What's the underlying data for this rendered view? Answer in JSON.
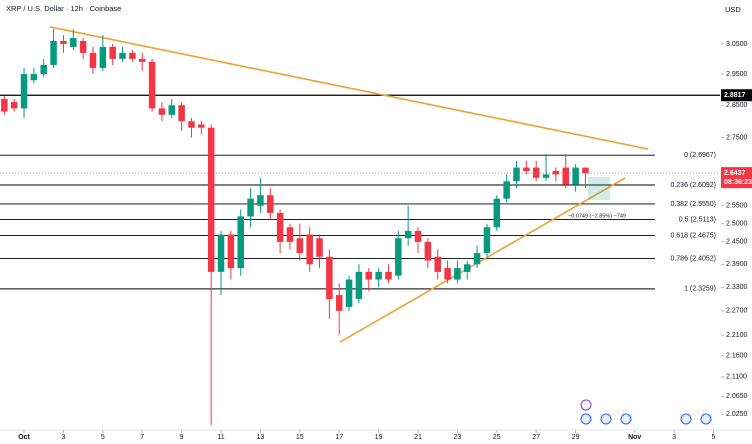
{
  "chart_data": {
    "type": "candlestick",
    "title": "XRP / U.S. Dollar · 12h · Coinbase",
    "unit": "USD",
    "log_scale": true,
    "up_color": "#089981",
    "down_color": "#f23645",
    "x": [
      0,
      0.5,
      1,
      1.5,
      2,
      2.5,
      3,
      3.5,
      4,
      4.5,
      5,
      5.5,
      6,
      6.5,
      7,
      7.5,
      8,
      8.5,
      9,
      9.5,
      10,
      10.5,
      11,
      11.5,
      12,
      12.5,
      13,
      13.5,
      14,
      14.5,
      15,
      15.5,
      16,
      16.5,
      17,
      17.5,
      18,
      18.5,
      19,
      19.5,
      20,
      20.5,
      21,
      21.5,
      22,
      22.5,
      23,
      23.5,
      24,
      24.5,
      25,
      25.5,
      26,
      26.5,
      27,
      27.5,
      28,
      28.5,
      29,
      29.5
    ],
    "open": [
      2.87,
      2.86,
      2.84,
      2.93,
      2.95,
      2.98,
      3.06,
      3.04,
      3.06,
      3.02,
      2.97,
      3.04,
      3.0,
      3.02,
      3.0,
      2.99,
      2.84,
      2.82,
      2.85,
      2.8,
      2.79,
      2.78,
      2.37,
      2.47,
      2.38,
      2.52,
      2.55,
      2.58,
      2.53,
      2.49,
      2.46,
      2.47,
      2.46,
      2.41,
      2.31,
      2.28,
      2.3,
      2.37,
      2.35,
      2.37,
      2.36,
      2.46,
      2.48,
      2.45,
      2.41,
      2.38,
      2.35,
      2.37,
      2.39,
      2.42,
      2.49,
      2.57,
      2.62,
      2.66,
      2.66,
      2.63,
      2.65,
      2.66,
      2.61,
      2.66
    ],
    "high": [
      2.88,
      2.87,
      2.97,
      2.97,
      3.0,
      3.1,
      3.08,
      3.1,
      3.07,
      3.04,
      3.08,
      3.05,
      3.04,
      3.03,
      3.02,
      3.0,
      2.86,
      2.87,
      2.86,
      2.81,
      2.8,
      2.79,
      2.48,
      2.48,
      2.54,
      2.6,
      2.63,
      2.6,
      2.54,
      2.5,
      2.5,
      2.49,
      2.47,
      2.43,
      2.34,
      2.36,
      2.39,
      2.38,
      2.38,
      2.39,
      2.48,
      2.55,
      2.49,
      2.46,
      2.43,
      2.4,
      2.4,
      2.4,
      2.44,
      2.5,
      2.58,
      2.64,
      2.68,
      2.68,
      2.68,
      2.7,
      2.66,
      2.7,
      2.67,
      2.66
    ],
    "low": [
      2.82,
      2.83,
      2.81,
      2.92,
      2.94,
      2.97,
      3.02,
      3.03,
      3.0,
      2.95,
      2.96,
      2.98,
      2.99,
      2.99,
      2.96,
      2.83,
      2.8,
      2.81,
      2.77,
      2.75,
      2.76,
      2.0,
      2.31,
      2.35,
      2.36,
      2.49,
      2.53,
      2.51,
      2.42,
      2.43,
      2.4,
      2.37,
      2.38,
      2.25,
      2.21,
      2.27,
      2.29,
      2.32,
      2.33,
      2.34,
      2.35,
      2.44,
      2.42,
      2.38,
      2.35,
      2.34,
      2.34,
      2.35,
      2.38,
      2.41,
      2.48,
      2.56,
      2.6,
      2.64,
      2.62,
      2.62,
      2.62,
      2.6,
      2.59,
      2.6
    ],
    "close": [
      2.83,
      2.84,
      2.95,
      2.95,
      2.98,
      3.06,
      3.05,
      3.07,
      3.02,
      2.97,
      3.04,
      3.0,
      3.02,
      3.0,
      2.99,
      2.84,
      2.82,
      2.85,
      2.8,
      2.78,
      2.78,
      2.37,
      2.47,
      2.38,
      2.52,
      2.57,
      2.58,
      2.53,
      2.45,
      2.45,
      2.42,
      2.39,
      2.41,
      2.3,
      2.27,
      2.35,
      2.37,
      2.35,
      2.37,
      2.35,
      2.46,
      2.48,
      2.45,
      2.4,
      2.37,
      2.35,
      2.38,
      2.39,
      2.42,
      2.49,
      2.57,
      2.62,
      2.66,
      2.65,
      2.63,
      2.64,
      2.64,
      2.61,
      2.66,
      2.6437
    ],
    "xlim": [
      -0.22,
      36.33
    ],
    "xticks": [
      {
        "value": 1,
        "label": "Oct"
      },
      3,
      5,
      7,
      9,
      11,
      13,
      15,
      17,
      19,
      21,
      23,
      25,
      27,
      29,
      {
        "value": 32,
        "label": "Nov"
      },
      {
        "value": 34,
        "label": "3"
      },
      {
        "value": 36,
        "label": "5"
      }
    ],
    "ylim": [
      1.994,
      3.202
    ],
    "yticks": [
      {
        "value": 3.05,
        "label": "3.0500"
      },
      {
        "value": 2.95,
        "label": "2.9500"
      },
      {
        "value": 2.85,
        "label": "2.8500"
      },
      {
        "value": 2.75,
        "label": "2.7500"
      },
      {
        "value": 2.55,
        "label": "2.5500"
      },
      {
        "value": 2.5,
        "label": "2.5000"
      },
      {
        "value": 2.45,
        "label": "2.4500"
      },
      {
        "value": 2.39,
        "label": "2.3900"
      },
      {
        "value": 2.33,
        "label": "2.3300"
      },
      {
        "value": 2.27,
        "label": "2.2700"
      },
      {
        "value": 2.21,
        "label": "2.2100"
      },
      {
        "value": 2.16,
        "label": "2.1600"
      },
      {
        "value": 2.11,
        "label": "2.1100"
      },
      {
        "value": 2.065,
        "label": "2.0650"
      },
      {
        "value": 2.025,
        "label": "2.0250"
      }
    ],
    "horizontal_line": 2.8817,
    "last_price": 2.6437,
    "countdown": "08:36:23",
    "fib_levels": [
      {
        "value": 2.6967,
        "label": "0 (2.6967)"
      },
      {
        "value": 2.6092,
        "label": "0.236 (2.6092)"
      },
      {
        "value": 2.555,
        "label": "0.382 (2.5550)"
      },
      {
        "value": 2.5113,
        "label": "0.5 (2.5113)"
      },
      {
        "value": 2.4675,
        "label": "0.618 (2.4675)"
      },
      {
        "value": 2.4052,
        "label": "0.786 (2.4052)"
      },
      {
        "value": 2.3259,
        "label": "1 (2.3259)"
      }
    ],
    "trendline_color": "#f0a030",
    "trendlines": [
      {
        "x": [
          2.32,
          32.68
        ],
        "y": [
          3.108,
          2.715
        ]
      },
      {
        "x": [
          17.04,
          31.51
        ],
        "y": [
          2.193,
          2.6295
        ]
      }
    ],
    "annotation": "−0.0749 (−2.85%) −749"
  }
}
